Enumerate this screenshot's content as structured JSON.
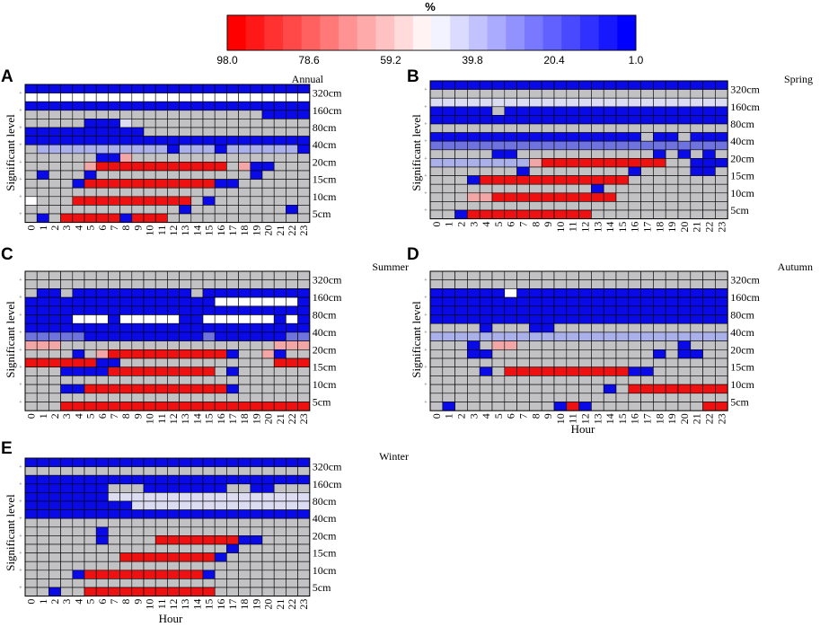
{
  "colorbar": {
    "title": "%",
    "tick_labels": [
      "98.0",
      "78.6",
      "59.2",
      "39.8",
      "20.4",
      "1.0"
    ],
    "colors": [
      "#FF0000",
      "#FFFFFF",
      "#0000FF"
    ],
    "range": [
      98.0,
      1.0
    ]
  },
  "axes": {
    "ylabel": "Significant level",
    "xlabel": "Hour",
    "levels": [
      "320cm",
      "160cm",
      "80cm",
      "40cm",
      "20cm",
      "15cm",
      "10cm",
      "5cm"
    ],
    "hours": [
      "0",
      "1",
      "2",
      "3",
      "4",
      "5",
      "6",
      "7",
      "8",
      "9",
      "10",
      "11",
      "12",
      "13",
      "14",
      "15",
      "16",
      "17",
      "18",
      "19",
      "20",
      "21",
      "22",
      "23"
    ]
  },
  "chart_data": [
    {
      "type": "heatmap",
      "panel": "A",
      "title": "Annual",
      "xlabel": "",
      "ylabel": "Significant level",
      "rows_per_level": 2,
      "cell_codes": {
        "R": "strong red",
        "P": "pink",
        "L": "light pink",
        "W": "white",
        "G": "gray (not significant)",
        "V": "light lavender",
        "U": "light blue",
        "M": "medium blue",
        "B": "dark blue"
      },
      "grid": [
        "BBBBBBBBBBBBBBBBBBBBBBBB",
        "WWWWWWWWWWWWWWWWWWWWWWWW",
        "BBBBBBBBBBBBBBBBBBBBBBBB",
        "GGGGGGGGGGGGGGGGGGGGBBBB",
        "GGGGGBBBVGGGGGGGGGGGGGGG",
        "BBBBBBBBBBGGGGGGGGGGGGGG",
        "BBBBBBBBBBBBBBBBBBBBBBBB",
        "GUUUUUUUUUUUBUUUBUUUUUUB",
        "GGGGGGBBPGGGGGGGGGGGGGGG",
        "GGGGGPRRRRRRRRRRRGPBBGGG",
        "GBGGGBGGGGGGGGGGGGGBGGGG",
        "GGGGBRRRRRRRRRRRBBGGGGGG",
        "GGGGGGGGGGGGGGGGGGGGGGGG",
        "WGGGRRRRRRRRRRGBGGGGGGGG",
        "GGGGGGGGGGGGGBGGGGGGGGBG",
        "GBGRRRRRBRRRGGGGGGGGGGGG"
      ]
    },
    {
      "type": "heatmap",
      "panel": "B",
      "title": "Spring",
      "xlabel": "",
      "ylabel": "Significant level",
      "rows_per_level": 2,
      "grid": [
        "BBBBBBBBBBBBBBBBBBBBBBBB",
        "GGGGGGGGGGGGGGGGGGGGGGGG",
        "VVVVVVVVVVVVVVVVVVVVVVVV",
        "BBBBBGBBBBBBBBBBBBBBBBBB",
        "BBBBBBBBBBBBBBBBBBBBBBBB",
        "GGGGGGGGGGGGGGGGGGGGGGGG",
        "BBBBBBBBBBBBBBBBBGBBGBBB",
        "MMMMMMMMMMMMMMMMMMMMMMMM",
        "GGGGGBBGGGGGGGGGGGBGBGBG",
        "UUUUUUUUPRRRRRRRRRRGGBBB",
        "GGGGGGGBGGGGGGGGBGGGGBBG",
        "GGGBRRRRRRRRRRRRGGGGGGGG",
        "GGGGGGGGGGGGGBGGGGGGGGGG",
        "GGGPPRRRRRRRRRRGGGGGGGGG",
        "GGGGGGGGGGGGGGGGGGGGGGGG",
        "GGBRRRRRRRRRRGGGGGGGGGGG"
      ]
    },
    {
      "type": "heatmap",
      "panel": "C",
      "title": "Summer",
      "xlabel": "",
      "ylabel": "Significant level",
      "rows_per_level": 2,
      "grid": [
        "GGGGGGGGGGGGGGGGGGGGGGGG",
        "GGGGGGGGGGGGGGGGGGGGGGGG",
        "GBBGBBBBBBBBBBGBBBBBBBBB",
        "BBBBBBBBBBBBBBBBWWWWWWWB",
        "BBBBBBBBBBBBBBBBBBBBBBBB",
        "BBBBWWWBWWWWWBBWWWWWWBWB",
        "BBBBBBBBBBBBBBBBBBBBBBBB",
        "MMMMMBBBBBBBBBBMBBBBBBMM",
        "PPPGGGGGGGGGGGGGGGGGGPPP",
        "GGGGBGPRRRRRRRRRRBGGPBGG",
        "RRRRRRBBGGGGGGGGGGGGGRRR",
        "GGGBBBBRRRRRRRRRGBGGGGGG",
        "GGGGGGGGGGGGGGGGGGGGGGGG",
        "GGGBBRRRRRRRRRRRRBGGGGGG",
        "GGGGGGGGGGGGGGGGGGGGGGGG",
        "GGGRRRRRRRRRRRRRRRRRRRRR"
      ]
    },
    {
      "type": "heatmap",
      "panel": "D",
      "title": "Autumn",
      "xlabel": "Hour",
      "ylabel": "Significant level",
      "rows_per_level": 2,
      "grid": [
        "GGGGGGGGGGGGGGGGGGGGGGGG",
        "GGGGGGGGGGGGGGGGGGGGGGGG",
        "BBBBBBWBBBBBBBBBBBBBBBBB",
        "BBBBBBBBBBBBBBBBBBBBBBBB",
        "BBBBBBBBBBBBBBBBBBBBBBBB",
        "BBBBBBBBBBBBBBBBBBBBBBBB",
        "GGGGBGGGBBGGGGGGGGGGGGGG",
        "UUUUUUUUUUUUUUUUUUUUUUUU",
        "GGGBGPPGGGGGGGGGGGGGBGGG",
        "GGGBBGGGGGGGGGGGGGBGBBGG",
        "GGGGGGGGGGGGGGGGGGGGGGGG",
        "GGGGBGRRRRRRRRRRBBGGGGGG",
        "GGGGGGGGGGGGGGGGGGGGGGGG",
        "GGGGGGGGGGGGGGBGRRRRRRRR",
        "GGGGGGGGGGGGGGGGGGGGGGGG",
        "GBGGGGGGGGBRBGGGGGGGGGRR"
      ]
    },
    {
      "type": "heatmap",
      "panel": "E",
      "title": "Winter",
      "xlabel": "Hour",
      "ylabel": "Significant level",
      "rows_per_level": 2,
      "grid": [
        "BBBBBBBBBBBBBBBBBBBBBBBB",
        "GGGGGGGGGGGGGGGGGGGGGGGG",
        "BBBBBBBBBBBBBBBBBBBBBBBB",
        "BBBBBBBGGGBBBBBBBGGBBGGG",
        "BBBBBBBVVVVVVVVVVVVVVVVV",
        "BBBBBBBBBVVVVVVVVVVVVVVV",
        "BBBBBBBBBBBBBBBBBBBBBBBB",
        "GGGGGGGGGGGGGGGGGGGGGGGG",
        "GGGGGGBGGGGGGGGGGGGGGGGG",
        "GGGGGGBGGGGRRRRRRRBBGGGG",
        "GGGGGGGGGGGGGGGGGBGGGGGG",
        "GGGGGGGGRRRRRRRRBGGGGGGG",
        "GGGGGGGGGGGGGGGGGGGGGGGG",
        "GGGGBRRRRRRRRRRBGGGGGGGG",
        "GGGGGGGGGGGGGGGGGGGGGGGG",
        "GGBGGRRRRRRRRRRRGGGGGGGG"
      ]
    }
  ]
}
